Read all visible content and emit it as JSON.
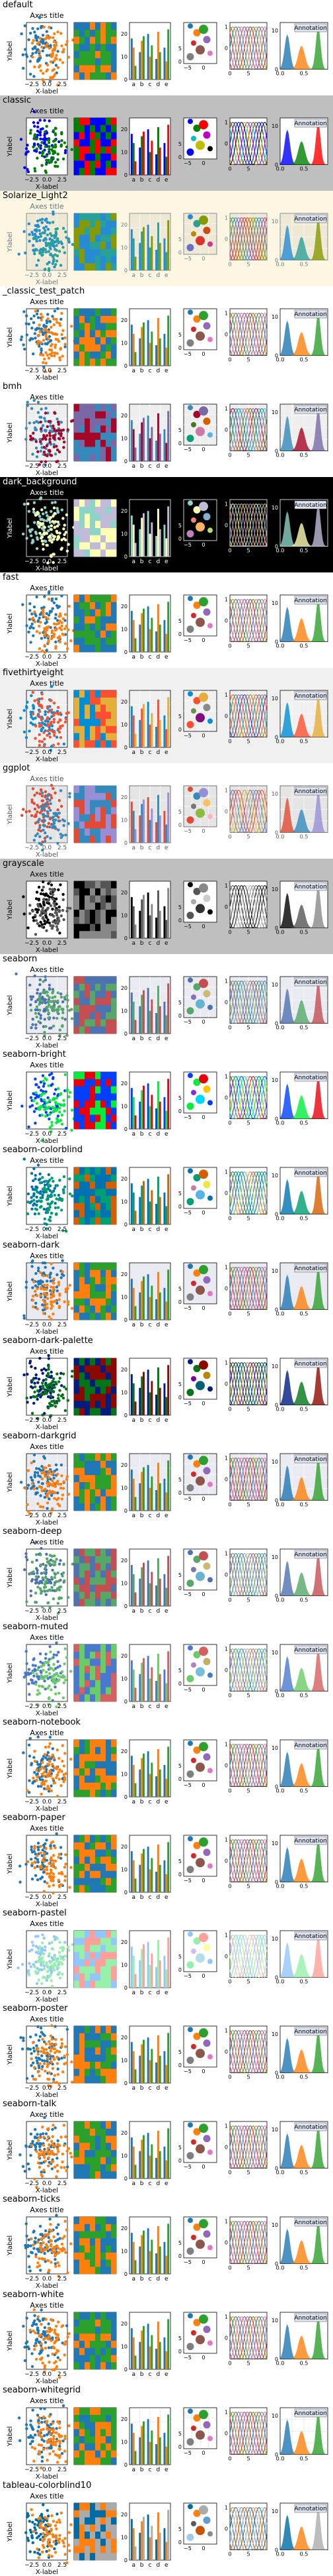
{
  "page": {
    "axes_title": "Axes title",
    "xlabel": "X-label",
    "ylabel": "Ylabel",
    "annotation": "Annotation"
  },
  "styles": [
    {
      "name": "default",
      "bg": "#ffffff",
      "axbg": "#ffffff",
      "fg": "#000000",
      "grid": false,
      "colors": [
        "#1f77b4",
        "#ff7f0e",
        "#2ca02c",
        "#d62728",
        "#9467bd",
        "#8c564b",
        "#e377c2",
        "#7f7f7f",
        "#bcbd22",
        "#17becf"
      ]
    },
    {
      "name": "classic",
      "bg": "#bfbfbf",
      "axbg": "#ffffff",
      "fg": "#000000",
      "grid": false,
      "colors": [
        "#0000ff",
        "#008000",
        "#ff0000",
        "#00bfbf",
        "#bf00bf",
        "#bfbf00",
        "#000000"
      ]
    },
    {
      "name": "Solarize_Light2",
      "bg": "#fdf6e3",
      "axbg": "#eee8d5",
      "fg": "#657b83",
      "grid": true,
      "colors": [
        "#268bd2",
        "#2aa198",
        "#859900",
        "#b58900",
        "#cb4b16",
        "#dc322f",
        "#d33682",
        "#6c71c4"
      ]
    },
    {
      "name": "_classic_test_patch",
      "bg": "#ffffff",
      "axbg": "#ffffff",
      "fg": "#000000",
      "grid": false,
      "colors": [
        "#1f77b4",
        "#ff7f0e",
        "#2ca02c",
        "#d62728",
        "#9467bd",
        "#8c564b",
        "#e377c2",
        "#7f7f7f",
        "#bcbd22",
        "#17becf"
      ]
    },
    {
      "name": "bmh",
      "bg": "#ffffff",
      "axbg": "#eeeeee",
      "fg": "#000000",
      "grid": true,
      "colors": [
        "#348abd",
        "#a60628",
        "#7a68a6",
        "#467821",
        "#d55e00",
        "#cc79a7",
        "#56b4e9",
        "#009e73",
        "#f0e442",
        "#0072b2"
      ]
    },
    {
      "name": "dark_background",
      "bg": "#000000",
      "axbg": "#000000",
      "fg": "#ffffff",
      "grid": false,
      "colors": [
        "#8dd3c7",
        "#feffb3",
        "#bfbbd9",
        "#fa8174",
        "#81b1d2",
        "#fdb462",
        "#b3de69",
        "#bc82bd",
        "#ccebc4",
        "#ffed6f"
      ]
    },
    {
      "name": "fast",
      "bg": "#ffffff",
      "axbg": "#ffffff",
      "fg": "#000000",
      "grid": false,
      "colors": [
        "#1f77b4",
        "#ff7f0e",
        "#2ca02c",
        "#d62728",
        "#9467bd",
        "#8c564b",
        "#e377c2",
        "#7f7f7f",
        "#bcbd22",
        "#17becf"
      ]
    },
    {
      "name": "fivethirtyeight",
      "bg": "#f0f0f0",
      "axbg": "#f0f0f0",
      "fg": "#000000",
      "grid": true,
      "colors": [
        "#008fd5",
        "#fc4f30",
        "#e5ae38",
        "#6d904f",
        "#8b8b8b",
        "#810f7c"
      ]
    },
    {
      "name": "ggplot",
      "bg": "#ffffff",
      "axbg": "#e5e5e5",
      "fg": "#555555",
      "grid": true,
      "colors": [
        "#e24a33",
        "#348abd",
        "#988ed5",
        "#777777",
        "#fbc15e",
        "#8eba42",
        "#ffb5b8"
      ]
    },
    {
      "name": "grayscale",
      "bg": "#bfbfbf",
      "axbg": "#ffffff",
      "fg": "#000000",
      "grid": false,
      "colors": [
        "#000000",
        "#555555",
        "#888888",
        "#aaaaaa",
        "#cccccc",
        "#333333"
      ]
    },
    {
      "name": "seaborn",
      "bg": "#ffffff",
      "axbg": "#eaeaf2",
      "fg": "#000000",
      "grid": true,
      "colors": [
        "#4c72b0",
        "#55a868",
        "#c44e52",
        "#8172b2",
        "#ccb974",
        "#64b5cd"
      ]
    },
    {
      "name": "seaborn-bright",
      "bg": "#ffffff",
      "axbg": "#ffffff",
      "fg": "#000000",
      "grid": false,
      "colors": [
        "#003fff",
        "#03ed3a",
        "#e8000b",
        "#8a2be2",
        "#ffc400",
        "#00d7ff"
      ]
    },
    {
      "name": "seaborn-colorblind",
      "bg": "#ffffff",
      "axbg": "#ffffff",
      "fg": "#000000",
      "grid": false,
      "colors": [
        "#0072b2",
        "#009e73",
        "#d55e00",
        "#cc79a7",
        "#f0e442",
        "#56b4e9"
      ]
    },
    {
      "name": "seaborn-dark",
      "bg": "#ffffff",
      "axbg": "#eaeaf2",
      "fg": "#000000",
      "grid": false,
      "colors": [
        "#1f77b4",
        "#ff7f0e",
        "#2ca02c",
        "#d62728",
        "#9467bd",
        "#8c564b",
        "#e377c2",
        "#7f7f7f",
        "#bcbd22",
        "#17becf"
      ]
    },
    {
      "name": "seaborn-dark-palette",
      "bg": "#ffffff",
      "axbg": "#ffffff",
      "fg": "#000000",
      "grid": false,
      "colors": [
        "#001c7f",
        "#017517",
        "#8c0900",
        "#7600a1",
        "#b8860b",
        "#006374"
      ]
    },
    {
      "name": "seaborn-darkgrid",
      "bg": "#ffffff",
      "axbg": "#eaeaf2",
      "fg": "#000000",
      "grid": true,
      "colors": [
        "#1f77b4",
        "#ff7f0e",
        "#2ca02c",
        "#d62728",
        "#9467bd",
        "#8c564b",
        "#e377c2",
        "#7f7f7f",
        "#bcbd22",
        "#17becf"
      ]
    },
    {
      "name": "seaborn-deep",
      "bg": "#ffffff",
      "axbg": "#ffffff",
      "fg": "#000000",
      "grid": false,
      "colors": [
        "#4c72b0",
        "#55a868",
        "#c44e52",
        "#8172b2",
        "#ccb974",
        "#64b5cd"
      ]
    },
    {
      "name": "seaborn-muted",
      "bg": "#ffffff",
      "axbg": "#ffffff",
      "fg": "#000000",
      "grid": false,
      "colors": [
        "#4878cf",
        "#6acc65",
        "#d65f5f",
        "#b47cc7",
        "#c4ad66",
        "#77bedb"
      ]
    },
    {
      "name": "seaborn-notebook",
      "bg": "#ffffff",
      "axbg": "#ffffff",
      "fg": "#000000",
      "grid": false,
      "colors": [
        "#1f77b4",
        "#ff7f0e",
        "#2ca02c",
        "#d62728",
        "#9467bd",
        "#8c564b",
        "#e377c2",
        "#7f7f7f",
        "#bcbd22",
        "#17becf"
      ]
    },
    {
      "name": "seaborn-paper",
      "bg": "#ffffff",
      "axbg": "#ffffff",
      "fg": "#000000",
      "grid": false,
      "colors": [
        "#1f77b4",
        "#ff7f0e",
        "#2ca02c",
        "#d62728",
        "#9467bd",
        "#8c564b",
        "#e377c2",
        "#7f7f7f",
        "#bcbd22",
        "#17becf"
      ]
    },
    {
      "name": "seaborn-pastel",
      "bg": "#ffffff",
      "axbg": "#ffffff",
      "fg": "#000000",
      "grid": false,
      "colors": [
        "#92c6ff",
        "#97f0aa",
        "#ff9f9a",
        "#d0bbff",
        "#fffea3",
        "#b0e0e6"
      ]
    },
    {
      "name": "seaborn-poster",
      "bg": "#ffffff",
      "axbg": "#ffffff",
      "fg": "#000000",
      "grid": false,
      "colors": [
        "#1f77b4",
        "#ff7f0e",
        "#2ca02c",
        "#d62728",
        "#9467bd",
        "#8c564b",
        "#e377c2",
        "#7f7f7f",
        "#bcbd22",
        "#17becf"
      ]
    },
    {
      "name": "seaborn-talk",
      "bg": "#ffffff",
      "axbg": "#ffffff",
      "fg": "#000000",
      "grid": false,
      "colors": [
        "#1f77b4",
        "#ff7f0e",
        "#2ca02c",
        "#d62728",
        "#9467bd",
        "#8c564b",
        "#e377c2",
        "#7f7f7f",
        "#bcbd22",
        "#17becf"
      ]
    },
    {
      "name": "seaborn-ticks",
      "bg": "#ffffff",
      "axbg": "#ffffff",
      "fg": "#000000",
      "grid": false,
      "colors": [
        "#1f77b4",
        "#ff7f0e",
        "#2ca02c",
        "#d62728",
        "#9467bd",
        "#8c564b",
        "#e377c2",
        "#7f7f7f",
        "#bcbd22",
        "#17becf"
      ]
    },
    {
      "name": "seaborn-white",
      "bg": "#ffffff",
      "axbg": "#ffffff",
      "fg": "#000000",
      "grid": false,
      "colors": [
        "#1f77b4",
        "#ff7f0e",
        "#2ca02c",
        "#d62728",
        "#9467bd",
        "#8c564b",
        "#e377c2",
        "#7f7f7f",
        "#bcbd22",
        "#17becf"
      ]
    },
    {
      "name": "seaborn-whitegrid",
      "bg": "#ffffff",
      "axbg": "#ffffff",
      "fg": "#000000",
      "grid": true,
      "colors": [
        "#1f77b4",
        "#ff7f0e",
        "#2ca02c",
        "#d62728",
        "#9467bd",
        "#8c564b",
        "#e377c2",
        "#7f7f7f",
        "#bcbd22",
        "#17becf"
      ]
    },
    {
      "name": "tableau-colorblind10",
      "bg": "#ffffff",
      "axbg": "#ffffff",
      "fg": "#000000",
      "grid": false,
      "colors": [
        "#006ba4",
        "#ff800e",
        "#ababab",
        "#595959",
        "#5f9ed1",
        "#c85200",
        "#898989",
        "#a2c8ec",
        "#ffbc79",
        "#cfcfcf"
      ]
    }
  ],
  "chart_data": [
    {
      "type": "scatter",
      "title": "Axes title",
      "xlabel": "X-label",
      "ylabel": "Ylabel",
      "xticks": [
        "−2.5",
        "0.0",
        "2.5"
      ],
      "xlim": [
        -3.5,
        3.5
      ],
      "ylim": [
        -3,
        3
      ],
      "series": 2
    },
    {
      "type": "heatmap",
      "rows": 8,
      "cols": 8
    },
    {
      "type": "bar",
      "categories": [
        "a",
        "b",
        "c",
        "d",
        "e"
      ],
      "yticks": [
        "0",
        "10",
        "20"
      ],
      "ylim": [
        0,
        25
      ],
      "series": [
        {
          "values": [
            18,
            12,
            20,
            9,
            14
          ]
        },
        {
          "values": [
            14,
            17,
            10,
            21,
            8
          ]
        },
        {
          "values": [
            6,
            19,
            15,
            12,
            22
          ]
        }
      ]
    },
    {
      "type": "scatter",
      "yticks": [
        "0",
        "5"
      ],
      "xticks": [
        "−5",
        "0"
      ],
      "points": [
        [
          -4,
          5
        ],
        [
          -2,
          3
        ],
        [
          0,
          4
        ],
        [
          -3,
          0
        ],
        [
          1,
          1
        ],
        [
          -1,
          -2
        ],
        [
          2,
          -3
        ],
        [
          -4,
          -4
        ]
      ]
    },
    {
      "type": "line",
      "yticks": [
        "0",
        "1"
      ],
      "xticks": [
        "0",
        "5"
      ],
      "xlim": [
        0,
        10
      ],
      "ylim": [
        -1,
        1.2
      ],
      "series_count": 8
    },
    {
      "type": "area",
      "yticks": [
        "0",
        "10"
      ],
      "xticks": [
        "0.0",
        "0.5"
      ],
      "xlim": [
        0,
        1
      ],
      "ylim": [
        0,
        12
      ],
      "annotation": "Annotation",
      "series": [
        {
          "peak_x": 0.15,
          "peak_y": 9,
          "width": 0.08
        },
        {
          "peak_x": 0.45,
          "peak_y": 6,
          "width": 0.1
        },
        {
          "peak_x": 0.8,
          "peak_y": 11,
          "width": 0.07
        }
      ]
    }
  ]
}
